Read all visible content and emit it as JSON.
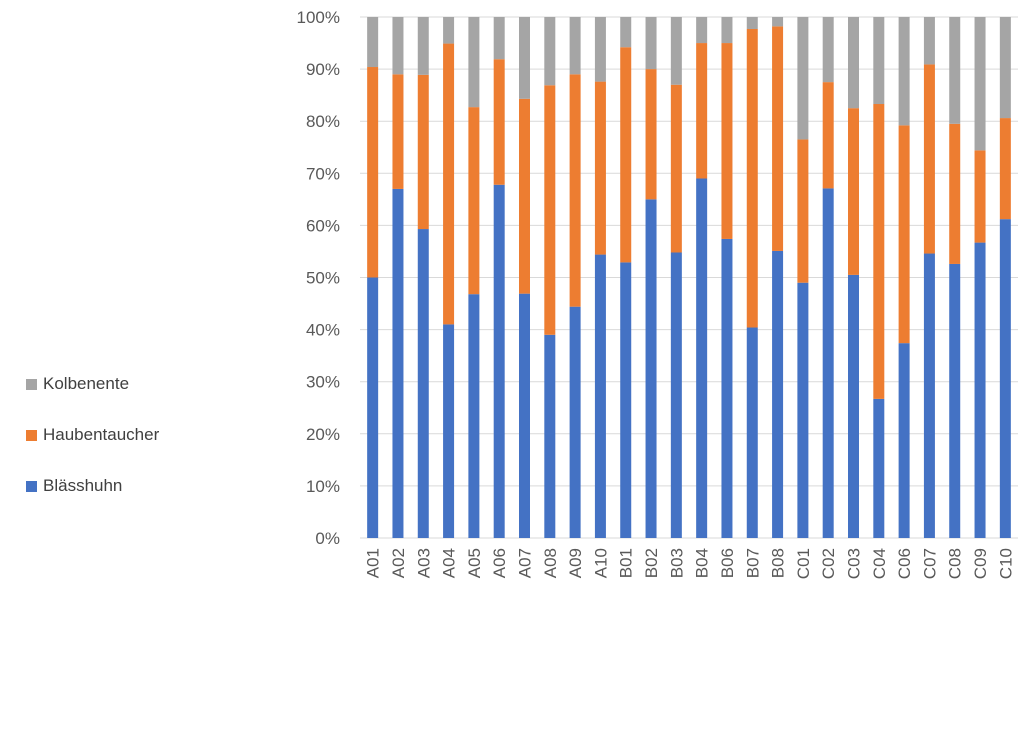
{
  "chart_data": {
    "type": "bar",
    "stacked": true,
    "percent": true,
    "categories": [
      "A01",
      "A02",
      "A03",
      "A04",
      "A05",
      "A06",
      "A07",
      "A08",
      "A09",
      "A10",
      "B01",
      "B02",
      "B03",
      "B04",
      "B06",
      "B07",
      "B08",
      "C01",
      "C02",
      "C03",
      "C04",
      "C06",
      "C07",
      "C08",
      "C09",
      "C10"
    ],
    "series": [
      {
        "name": "Blässhuhn",
        "color": "#4472C4",
        "values": [
          50.0,
          67.0,
          59.3,
          41.0,
          46.8,
          67.8,
          46.9,
          39.0,
          44.4,
          54.4,
          52.9,
          65.0,
          54.8,
          69.0,
          57.4,
          40.4,
          55.1,
          49.0,
          67.1,
          50.5,
          26.7,
          37.4,
          54.6,
          52.6,
          56.7,
          61.2
        ]
      },
      {
        "name": "Haubentaucher",
        "color": "#ED7D31",
        "values": [
          40.4,
          22.0,
          29.6,
          53.9,
          35.9,
          24.1,
          37.4,
          47.9,
          44.6,
          33.2,
          41.3,
          25.0,
          32.2,
          26.0,
          37.6,
          57.3,
          43.1,
          27.5,
          20.4,
          32.0,
          56.6,
          41.8,
          36.3,
          26.9,
          17.7,
          19.4
        ]
      },
      {
        "name": "Kolbenente",
        "color": "#A5A5A5",
        "values": [
          9.6,
          11.0,
          11.1,
          5.1,
          17.3,
          8.1,
          15.7,
          13.1,
          11.0,
          12.4,
          5.8,
          10.0,
          13.0,
          5.0,
          5.0,
          2.3,
          1.8,
          23.5,
          12.5,
          17.5,
          16.7,
          20.8,
          9.1,
          20.5,
          25.6,
          19.4
        ]
      }
    ],
    "ylim": [
      0,
      100
    ],
    "yticks": [
      "0%",
      "10%",
      "20%",
      "30%",
      "40%",
      "50%",
      "60%",
      "70%",
      "80%",
      "90%",
      "100%"
    ],
    "grid": true,
    "legend_position": "left",
    "legend_order": [
      "Kolbenente",
      "Haubentaucher",
      "Blässhuhn"
    ],
    "gridline_color": "#D9D9D9",
    "text_color": "#595959"
  }
}
